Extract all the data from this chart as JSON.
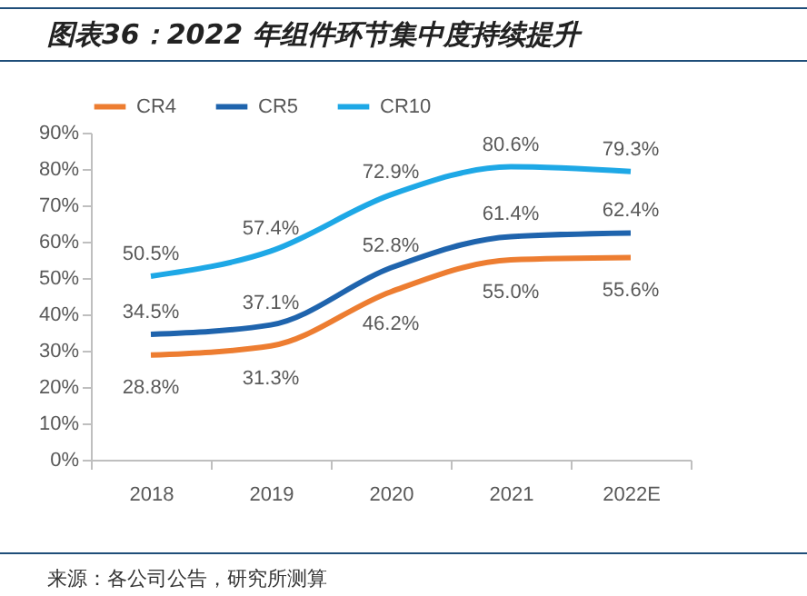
{
  "chart_data": {
    "type": "line",
    "title": "图表36：2022 年组件环节集中度持续提升",
    "categories": [
      "2018",
      "2019",
      "2020",
      "2021",
      "2022E"
    ],
    "series": [
      {
        "name": "CR4",
        "color": "#ed7d31",
        "values": [
          28.8,
          31.3,
          46.2,
          55.0,
          55.6
        ],
        "value_labels": [
          "28.8%",
          "31.3%",
          "46.2%",
          "55.0%",
          "55.6%"
        ]
      },
      {
        "name": "CR5",
        "color": "#1f64ad",
        "values": [
          34.5,
          37.1,
          52.8,
          61.4,
          62.4
        ],
        "value_labels": [
          "34.5%",
          "37.1%",
          "52.8%",
          "61.4%",
          "62.4%"
        ]
      },
      {
        "name": "CR10",
        "color": "#1ea8e6",
        "values": [
          50.5,
          57.4,
          72.9,
          80.6,
          79.3
        ],
        "value_labels": [
          "50.5%",
          "57.4%",
          "72.9%",
          "80.6%",
          "79.3%"
        ]
      }
    ],
    "ylim": [
      0,
      90
    ],
    "yticks": [
      {
        "value": 0,
        "label": "0%"
      },
      {
        "value": 10,
        "label": "10%"
      },
      {
        "value": 20,
        "label": "20%"
      },
      {
        "value": 30,
        "label": "30%"
      },
      {
        "value": 40,
        "label": "40%"
      },
      {
        "value": 50,
        "label": "50%"
      },
      {
        "value": 60,
        "label": "60%"
      },
      {
        "value": 70,
        "label": "70%"
      },
      {
        "value": 80,
        "label": "80%"
      },
      {
        "value": 90,
        "label": "90%"
      }
    ],
    "grid": false,
    "legend": "top",
    "marker": "none",
    "line_style": "solid",
    "annotations": [
      "来源：各公司公告，研究所测算"
    ]
  }
}
